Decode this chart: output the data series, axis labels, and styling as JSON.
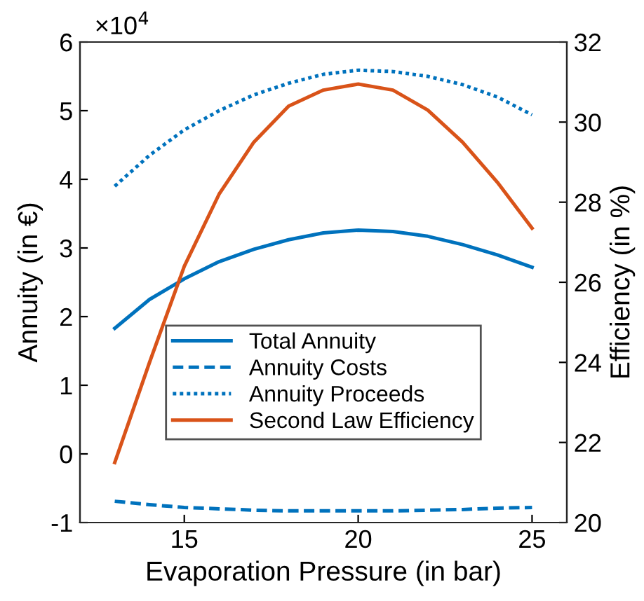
{
  "chart_data": {
    "type": "line",
    "xlabel": "Evaporation Pressure (in bar)",
    "ylabel": "Annuity (in €)",
    "y2label": "Efficiency (in %)",
    "annotations": [
      "×10$^{4}$"
    ],
    "x": [
      13,
      14,
      15,
      16,
      17,
      18,
      19,
      20,
      21,
      22,
      23,
      24,
      25
    ],
    "xlim": [
      12,
      26
    ],
    "xticks": [
      15,
      20,
      25
    ],
    "ylim": [
      -1,
      6
    ],
    "yticks": [
      -1,
      0,
      1,
      2,
      3,
      4,
      5,
      6
    ],
    "y2lim": [
      20,
      32
    ],
    "y2ticks": [
      20,
      22,
      24,
      26,
      28,
      30,
      32
    ],
    "grid": false,
    "legend": "bottom",
    "series": [
      {
        "name": "Total Annuity",
        "color": "#0072bd",
        "line_style": "solid",
        "values": [
          1.83,
          2.25,
          2.55,
          2.8,
          2.98,
          3.12,
          3.22,
          3.26,
          3.24,
          3.17,
          3.05,
          2.9,
          2.72
        ]
      },
      {
        "name": "Annuity Costs",
        "color": "#0072bd",
        "line_style": "dashed",
        "values": [
          -0.69,
          -0.74,
          -0.78,
          -0.8,
          -0.82,
          -0.83,
          -0.83,
          -0.83,
          -0.83,
          -0.82,
          -0.81,
          -0.79,
          -0.78
        ]
      },
      {
        "name": "Annuity Proceeds",
        "color": "#0072bd",
        "line_style": "dotted",
        "values": [
          3.9,
          4.35,
          4.72,
          5.0,
          5.23,
          5.4,
          5.53,
          5.59,
          5.57,
          5.5,
          5.38,
          5.2,
          4.94
        ]
      },
      {
        "name": "Second Law Efficiency",
        "color": "#d95319",
        "line_style": "solid",
        "axis": "y2",
        "values": [
          21.5,
          24.0,
          26.4,
          28.2,
          29.5,
          30.4,
          30.8,
          30.95,
          30.8,
          30.3,
          29.5,
          28.5,
          27.35
        ]
      }
    ]
  }
}
